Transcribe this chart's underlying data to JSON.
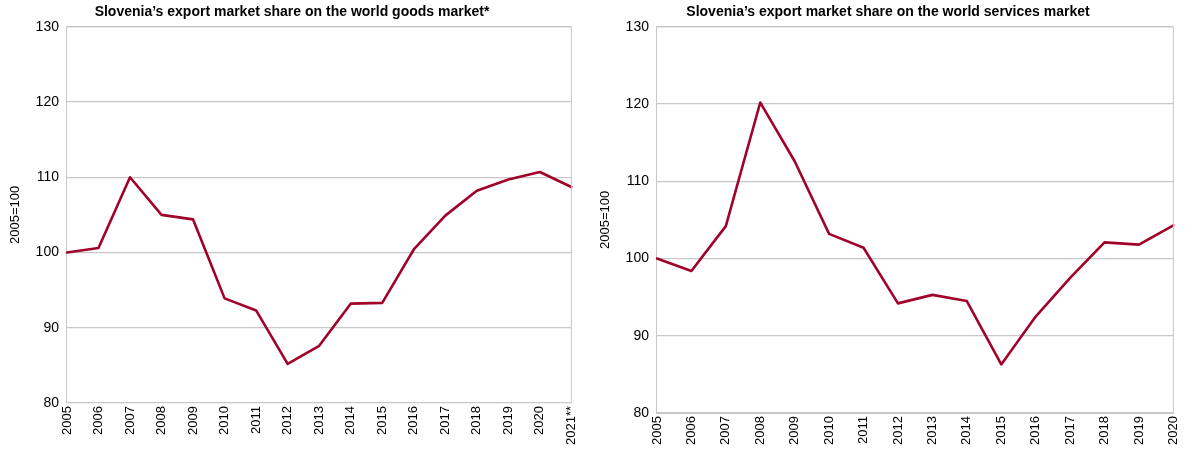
{
  "chart_data": [
    {
      "type": "line",
      "title": "Slovenia’s export market share on the world goods market*",
      "ylabel": "2005=100",
      "categories": [
        "2005",
        "2006",
        "2007",
        "2008",
        "2009",
        "2010",
        "2011",
        "2012",
        "2013",
        "2014",
        "2015",
        "2016",
        "2017",
        "2018",
        "2019",
        "2020",
        "2021**"
      ],
      "series": [
        {
          "color": "#a0022a",
          "values": [
            100,
            100.6,
            110,
            105.0,
            104.4,
            93.9,
            92.3,
            85.2,
            87.6,
            93.2,
            93.3,
            100.4,
            104.9,
            108.2,
            109.7,
            110.7,
            108.7
          ]
        }
      ],
      "ylim": [
        80,
        130
      ],
      "yticks": [
        80,
        90,
        100,
        110,
        120,
        130
      ],
      "grid": "y",
      "legend": false,
      "marker": "none",
      "line_style": "solid"
    },
    {
      "type": "line",
      "title": "Slovenia’s export market share on the world services market",
      "ylabel": "2005=100",
      "categories": [
        "2005",
        "2006",
        "2007",
        "2008",
        "2009",
        "2010",
        "2011",
        "2012",
        "2013",
        "2014",
        "2015",
        "2016",
        "2017",
        "2018",
        "2019",
        "2020"
      ],
      "series": [
        {
          "color": "#a0022a",
          "values": [
            100,
            98.4,
            104.2,
            120.2,
            112.6,
            103.2,
            101.4,
            94.2,
            95.3,
            94.5,
            86.3,
            92.5,
            97.5,
            102.1,
            101.8,
            104.3
          ]
        }
      ],
      "ylim": [
        80,
        130
      ],
      "yticks": [
        80,
        90,
        100,
        110,
        120,
        130
      ],
      "grid": "y",
      "legend": false,
      "marker": "none",
      "line_style": "solid"
    }
  ]
}
